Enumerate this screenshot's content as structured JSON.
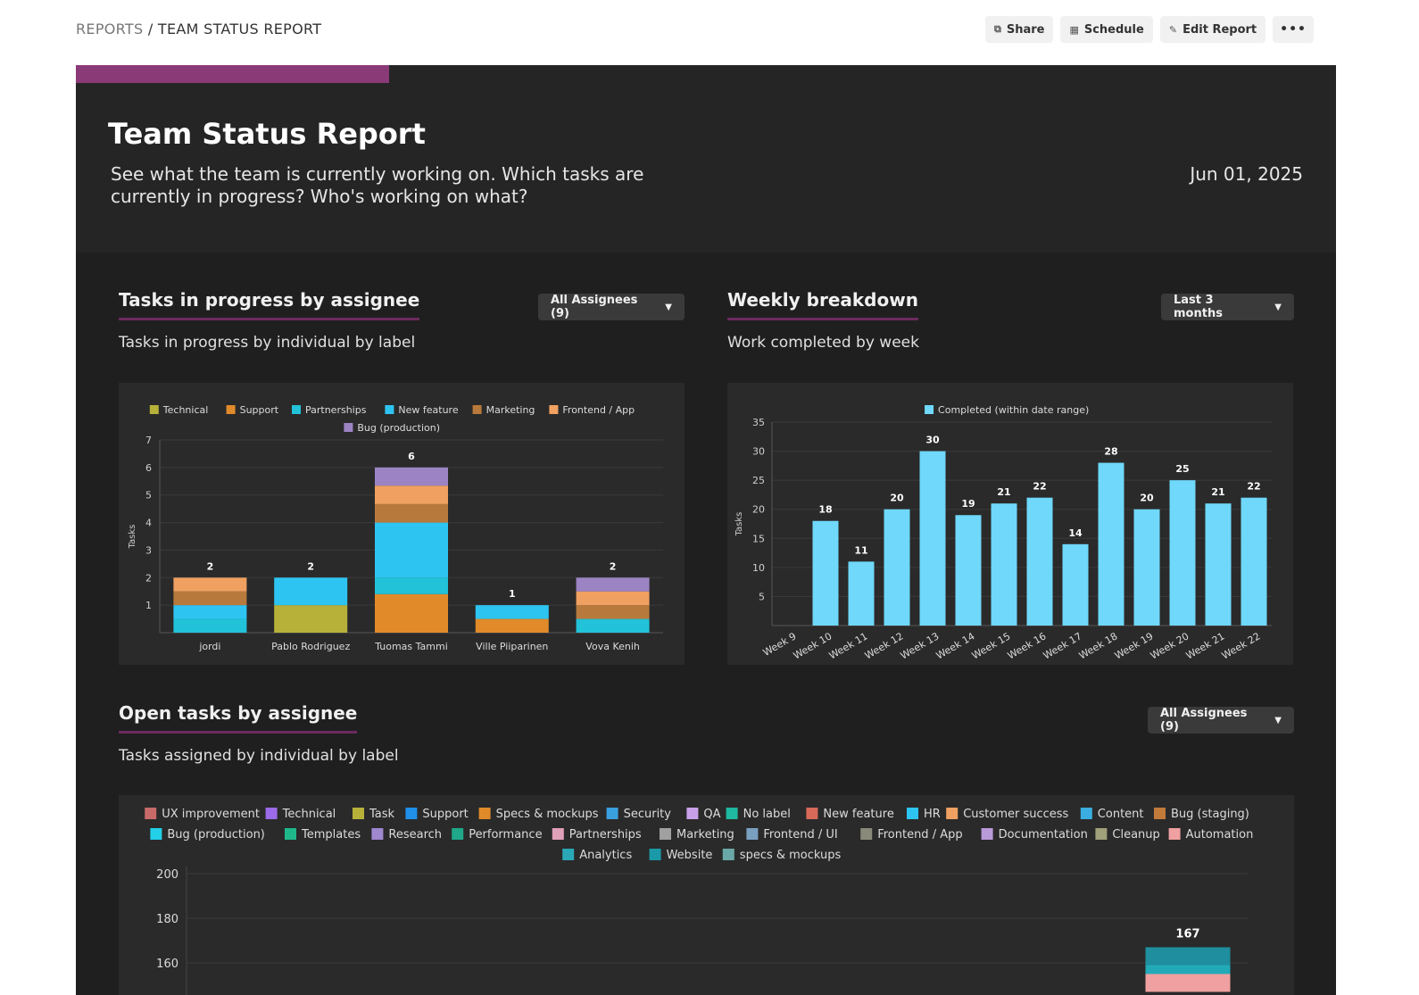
{
  "breadcrumb": {
    "root": "REPORTS",
    "separator": " / ",
    "current": "TEAM STATUS REPORT"
  },
  "actions": [
    {
      "label": "Share",
      "icon": "share-icon"
    },
    {
      "label": "Schedule",
      "icon": "calendar-icon"
    },
    {
      "label": "Edit Report",
      "icon": "edit-icon"
    }
  ],
  "more_label": "•••",
  "report": {
    "title": "Team Status Report",
    "description": "See what the team is currently working on. Which tasks are currently in progress? Who's working on what?",
    "date": "Jun 01, 2025"
  },
  "sections": {
    "in_progress": {
      "title": "Tasks in progress by assignee",
      "subtitle": "Tasks in progress by individual by label",
      "dropdown": "All Assignees (9)"
    },
    "weekly": {
      "title": "Weekly breakdown",
      "subtitle": "Work completed by week",
      "dropdown": "Last 3 months"
    },
    "open": {
      "title": "Open tasks by assignee",
      "subtitle": "Tasks assigned by individual by label",
      "dropdown": "All Assignees (9)"
    }
  },
  "colors": {
    "accent": "#8b3a78",
    "Technical": "#b7b13a",
    "Support": "#e08a2a",
    "Partnerships": "#22c2d8",
    "New feature": "#2ec4f2",
    "Marketing": "#b87a3c",
    "Frontend / App": "#f0a060",
    "Bug (production)": "#9c84c4",
    "Completed": "#6fd8fb"
  },
  "chart_data": [
    {
      "type": "bar",
      "stacked": true,
      "legend": [
        "Technical",
        "Support",
        "Partnerships",
        "New feature",
        "Marketing",
        "Frontend / App",
        "Bug (production)"
      ],
      "ylabel": "Tasks",
      "ylim": [
        0,
        7
      ],
      "yticks": [
        1,
        2,
        3,
        4,
        5,
        6,
        7
      ],
      "categories": [
        "jordi",
        "Pablo Rodriguez",
        "Tuomas Tammi",
        "Ville Piiparinen",
        "Vova Kenih"
      ],
      "totals": [
        2,
        2,
        6,
        1,
        2
      ],
      "series": [
        {
          "name": "Technical",
          "values": [
            0,
            1,
            0,
            0,
            0
          ]
        },
        {
          "name": "Support",
          "values": [
            0,
            0,
            1.4,
            0.5,
            0
          ]
        },
        {
          "name": "Partnerships",
          "values": [
            0.5,
            0,
            0.6,
            0,
            0.5
          ]
        },
        {
          "name": "New feature",
          "values": [
            0.5,
            1,
            2,
            0.5,
            0
          ]
        },
        {
          "name": "Marketing",
          "values": [
            0.5,
            0,
            0.67,
            0,
            0.5
          ]
        },
        {
          "name": "Frontend / App",
          "values": [
            0.5,
            0,
            0.67,
            0,
            0.5
          ]
        },
        {
          "name": "Bug (production)",
          "values": [
            0,
            0,
            0.66,
            0,
            0.5
          ]
        }
      ]
    },
    {
      "type": "bar",
      "legend": [
        "Completed (within date range)"
      ],
      "ylabel": "Tasks",
      "ylim": [
        0,
        35
      ],
      "yticks": [
        5,
        10,
        15,
        20,
        25,
        30,
        35
      ],
      "categories": [
        "Week 9",
        "Week 10",
        "Week 11",
        "Week 12",
        "Week 13",
        "Week 14",
        "Week 15",
        "Week 16",
        "Week 17",
        "Week 18",
        "Week 19",
        "Week 20",
        "Week 21",
        "Week 22"
      ],
      "series": [
        {
          "name": "Completed (within date range)",
          "values": [
            0,
            18,
            11,
            20,
            30,
            19,
            21,
            22,
            14,
            28,
            20,
            25,
            21,
            22
          ]
        }
      ]
    },
    {
      "type": "bar",
      "stacked": true,
      "legend": [
        {
          "name": "UX improvement",
          "color": "#c96a6a"
        },
        {
          "name": "Technical",
          "color": "#9b6ae8"
        },
        {
          "name": "Task",
          "color": "#b7b13a"
        },
        {
          "name": "Support",
          "color": "#1f8fe8"
        },
        {
          "name": "Specs & mockups",
          "color": "#e08a2a"
        },
        {
          "name": "Security",
          "color": "#3aa0e0"
        },
        {
          "name": "QA",
          "color": "#c9a0e8"
        },
        {
          "name": "No label",
          "color": "#1fb8a0"
        },
        {
          "name": "New feature",
          "color": "#d86a5a"
        },
        {
          "name": "HR",
          "color": "#2ec4f2"
        },
        {
          "name": "Customer success",
          "color": "#f0a060"
        },
        {
          "name": "Content",
          "color": "#3aaee0"
        },
        {
          "name": "Bug (staging)",
          "color": "#c07a3a"
        },
        {
          "name": "Bug (production)",
          "color": "#22d0e8"
        },
        {
          "name": "Templates",
          "color": "#1fb88a"
        },
        {
          "name": "Research",
          "color": "#a088d0"
        },
        {
          "name": "Performance",
          "color": "#1fa88a"
        },
        {
          "name": "Partnerships",
          "color": "#e0a0b8"
        },
        {
          "name": "Marketing",
          "color": "#a0a0a0"
        },
        {
          "name": "Frontend / UI",
          "color": "#7aa0c0"
        },
        {
          "name": "Frontend / App",
          "color": "#8a8a7a"
        },
        {
          "name": "Documentation",
          "color": "#b89ad8"
        },
        {
          "name": "Cleanup",
          "color": "#a0a07a"
        },
        {
          "name": "Automation",
          "color": "#f0a0a0"
        },
        {
          "name": "Analytics",
          "color": "#2aa8b8"
        },
        {
          "name": "Website",
          "color": "#1a9aa8"
        },
        {
          "name": "specs & mockups",
          "color": "#6aa8a8"
        }
      ],
      "ylim": [
        150,
        200
      ],
      "yticks": [
        160,
        180,
        200
      ],
      "visible_bar": {
        "total": 167,
        "segments": [
          {
            "name": "Website",
            "value": 8,
            "color": "#1f8e9e"
          },
          {
            "name": "Analytics",
            "value": 4,
            "color": "#22aab8"
          },
          {
            "name": "Automation",
            "value": 8,
            "color": "#f0a0a0"
          }
        ]
      }
    }
  ]
}
